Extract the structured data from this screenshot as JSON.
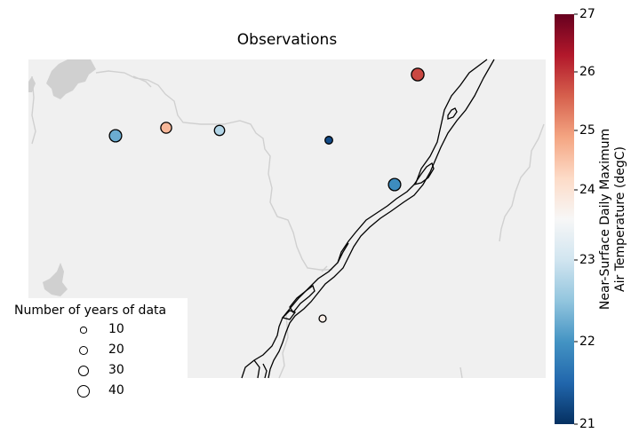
{
  "title": "Observations",
  "legend": {
    "title": "Number of years of data",
    "entries": [
      {
        "label": "10",
        "years": 10
      },
      {
        "label": "20",
        "years": 20
      },
      {
        "label": "30",
        "years": 30
      },
      {
        "label": "40",
        "years": 40
      }
    ]
  },
  "colorbar": {
    "label_line1": "Near-Surface Daily Maximum",
    "label_line2": "Air Temperature (degC)",
    "min": 21,
    "max": 27,
    "ticks": [
      "21",
      "22",
      "23",
      "24",
      "25",
      "26",
      "27"
    ],
    "colors": [
      "#053061",
      "#2166ac",
      "#4393c3",
      "#92c5de",
      "#d1e5f0",
      "#f7f7f7",
      "#fddbc7",
      "#f4a582",
      "#d6604d",
      "#b2182b",
      "#67001f"
    ]
  },
  "map": {
    "land_color": "#f0f0f0",
    "border_color": "#d0d0d0",
    "river_color": "#000000"
  },
  "chart_data": {
    "type": "scatter",
    "title": "Observations",
    "color_scale": {
      "label": "Near-Surface Daily Maximum Air Temperature (degC)",
      "range": [
        21,
        27
      ]
    },
    "size_scale": {
      "label": "Number of years of data",
      "reference": [
        10,
        20,
        30,
        40
      ]
    },
    "stations": [
      {
        "temperature": 26.0,
        "years": 38
      },
      {
        "temperature": 25.0,
        "years": 28
      },
      {
        "temperature": 22.5,
        "years": 36
      },
      {
        "temperature": 23.1,
        "years": 25
      },
      {
        "temperature": 21.3,
        "years": 14
      },
      {
        "temperature": 22.1,
        "years": 36
      },
      {
        "temperature": 24.2,
        "years": 12
      }
    ]
  }
}
